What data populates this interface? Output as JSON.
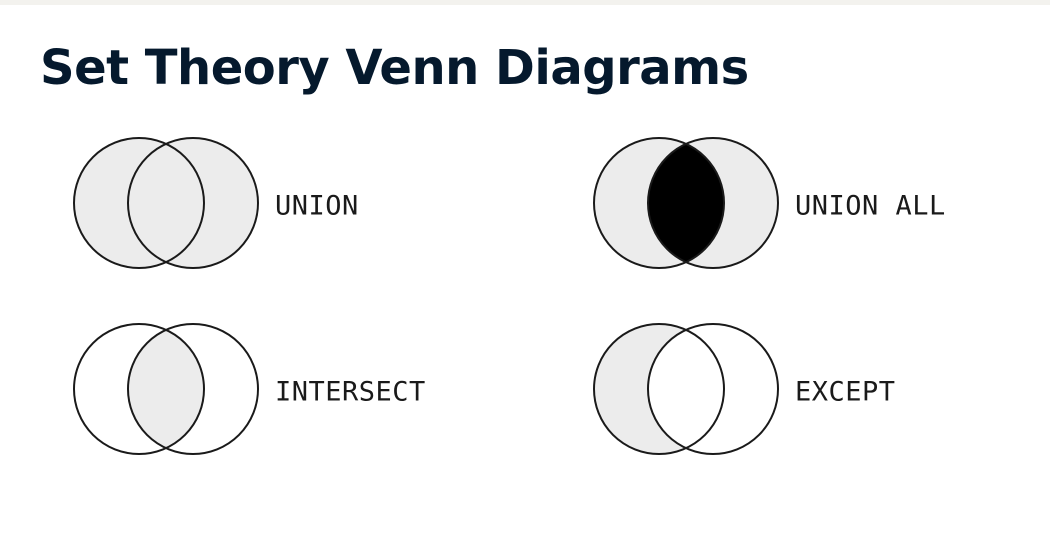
{
  "title": "Set Theory Venn Diagrams",
  "colors": {
    "title": "#05192d",
    "light_fill": "#ececec",
    "dark_fill": "#000000",
    "outline": "#1a1a1a",
    "background": "#ffffff"
  },
  "diagrams": [
    {
      "id": "union",
      "label": "UNION",
      "left": "light",
      "overlap": "light",
      "right": "light"
    },
    {
      "id": "union-all",
      "label": "UNION ALL",
      "left": "light",
      "overlap": "dark",
      "right": "light"
    },
    {
      "id": "intersect",
      "label": "INTERSECT",
      "left": "none",
      "overlap": "light",
      "right": "none"
    },
    {
      "id": "except",
      "label": "EXCEPT",
      "left": "light",
      "overlap": "none",
      "right": "none"
    }
  ]
}
